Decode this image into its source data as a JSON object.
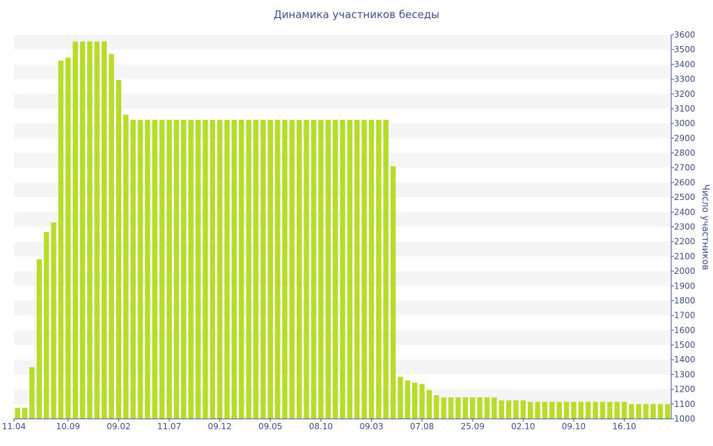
{
  "chart_data": {
    "type": "bar",
    "title": "Динамика участников беседы",
    "xlabel": "",
    "ylabel": "Число участников",
    "ylim": [
      1000,
      3600
    ],
    "y_step": 100,
    "y_axis_side": "right",
    "grid": "alternating horizontal bands",
    "bar_color": "#b8dc2a",
    "band_color": "#f5f5f5",
    "text_color": "#3c4e86",
    "x_tick_labels": [
      {
        "index": 0,
        "label": "11.04"
      },
      {
        "index": 7,
        "label": "10.09"
      },
      {
        "index": 14,
        "label": "09.02"
      },
      {
        "index": 21,
        "label": "11.07"
      },
      {
        "index": 28,
        "label": "09.12"
      },
      {
        "index": 35,
        "label": "09.05"
      },
      {
        "index": 42,
        "label": "08.10"
      },
      {
        "index": 49,
        "label": "09.03"
      },
      {
        "index": 56,
        "label": "07.08"
      },
      {
        "index": 63,
        "label": "25.09"
      },
      {
        "index": 70,
        "label": "02.10"
      },
      {
        "index": 77,
        "label": "09.10"
      },
      {
        "index": 84,
        "label": "16.10"
      }
    ],
    "values": [
      1075,
      1075,
      1350,
      2080,
      2265,
      2330,
      3425,
      3445,
      3555,
      3555,
      3555,
      3555,
      3555,
      3470,
      3295,
      3060,
      3025,
      3025,
      3025,
      3025,
      3025,
      3025,
      3025,
      3025,
      3025,
      3025,
      3025,
      3025,
      3025,
      3025,
      3025,
      3025,
      3025,
      3025,
      3025,
      3025,
      3025,
      3025,
      3025,
      3025,
      3025,
      3025,
      3025,
      3025,
      3025,
      3025,
      3025,
      3025,
      3025,
      3025,
      3025,
      3025,
      2710,
      1285,
      1260,
      1245,
      1235,
      1195,
      1160,
      1145,
      1145,
      1145,
      1145,
      1145,
      1145,
      1145,
      1145,
      1125,
      1125,
      1125,
      1125,
      1115,
      1115,
      1115,
      1115,
      1115,
      1115,
      1115,
      1115,
      1115,
      1115,
      1115,
      1115,
      1115,
      1115,
      1100,
      1100,
      1100,
      1100,
      1100,
      1100
    ]
  }
}
